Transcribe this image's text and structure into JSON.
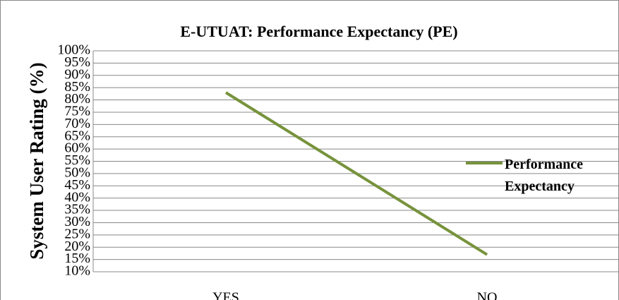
{
  "chart_data": {
    "type": "line",
    "title": "E-UTUAT: Performance Expectancy (PE)",
    "y_label": "System User Rating (%)",
    "categories": [
      "YES",
      "NO"
    ],
    "series": [
      {
        "name": "Performance Expectancy",
        "color": "#77933c",
        "values": [
          83,
          17
        ]
      }
    ],
    "ylim": [
      10,
      100
    ],
    "yticks": [
      {
        "value": 10,
        "label": "10%"
      },
      {
        "value": 15,
        "label": "15%"
      },
      {
        "value": 20,
        "label": "20%"
      },
      {
        "value": 25,
        "label": "25%"
      },
      {
        "value": 30,
        "label": "30%"
      },
      {
        "value": 35,
        "label": "35%"
      },
      {
        "value": 40,
        "label": "40%"
      },
      {
        "value": 45,
        "label": "45%"
      },
      {
        "value": 50,
        "label": "50%"
      },
      {
        "value": 55,
        "label": "55%"
      },
      {
        "value": 60,
        "label": "60%"
      },
      {
        "value": 65,
        "label": "65%"
      },
      {
        "value": 70,
        "label": "70%"
      },
      {
        "value": 75,
        "label": "75%"
      },
      {
        "value": 80,
        "label": "80%"
      },
      {
        "value": 85,
        "label": "85%"
      },
      {
        "value": 90,
        "label": "90%"
      },
      {
        "value": 95,
        "label": "95%"
      },
      {
        "value": 100,
        "label": "100%"
      }
    ],
    "grid": true,
    "legend": "right"
  }
}
